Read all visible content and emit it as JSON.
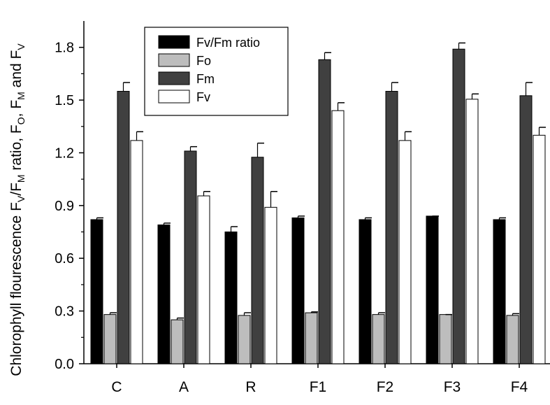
{
  "chart_data": {
    "type": "bar",
    "title": "",
    "xlabel": "",
    "ylabel": {
      "prefix": "Chlorophyll flourescence F",
      "mid1": "/F",
      "mid2": " ratio, F",
      "mid3": ", F",
      "mid4": " and F",
      "sub_v": "V",
      "sub_m": "M",
      "sub_o": "O"
    },
    "categories": [
      "C",
      "A",
      "R",
      "F1",
      "F2",
      "F3",
      "F4"
    ],
    "series": [
      {
        "name": "Fv/Fm ratio",
        "color": "#000000",
        "values": [
          0.82,
          0.79,
          0.75,
          0.83,
          0.82,
          0.84,
          0.82
        ],
        "errors": [
          0.01,
          0.01,
          0.03,
          0.01,
          0.01,
          0.0,
          0.01
        ]
      },
      {
        "name": "Fo",
        "color": "#bdbdbd",
        "values": [
          0.28,
          0.25,
          0.275,
          0.29,
          0.28,
          0.28,
          0.275
        ],
        "errors": [
          0.01,
          0.01,
          0.015,
          0.005,
          0.01,
          0.0,
          0.01
        ]
      },
      {
        "name": "Fm",
        "color": "#404040",
        "values": [
          1.55,
          1.21,
          1.175,
          1.73,
          1.55,
          1.79,
          1.525
        ],
        "errors": [
          0.05,
          0.025,
          0.08,
          0.04,
          0.05,
          0.035,
          0.075
        ]
      },
      {
        "name": "Fv",
        "color": "#ffffff",
        "values": [
          1.27,
          0.955,
          0.89,
          1.44,
          1.27,
          1.505,
          1.3
        ],
        "errors": [
          0.05,
          0.025,
          0.09,
          0.045,
          0.05,
          0.03,
          0.045
        ]
      }
    ],
    "ylim": [
      0.0,
      1.95
    ],
    "yticks": [
      "0.0",
      "0.3",
      "0.6",
      "0.9",
      "1.2",
      "1.5",
      "1.8"
    ],
    "ytick_values": [
      0.0,
      0.3,
      0.6,
      0.9,
      1.2,
      1.5,
      1.8
    ],
    "grid": false,
    "legend_position": "top-left"
  }
}
